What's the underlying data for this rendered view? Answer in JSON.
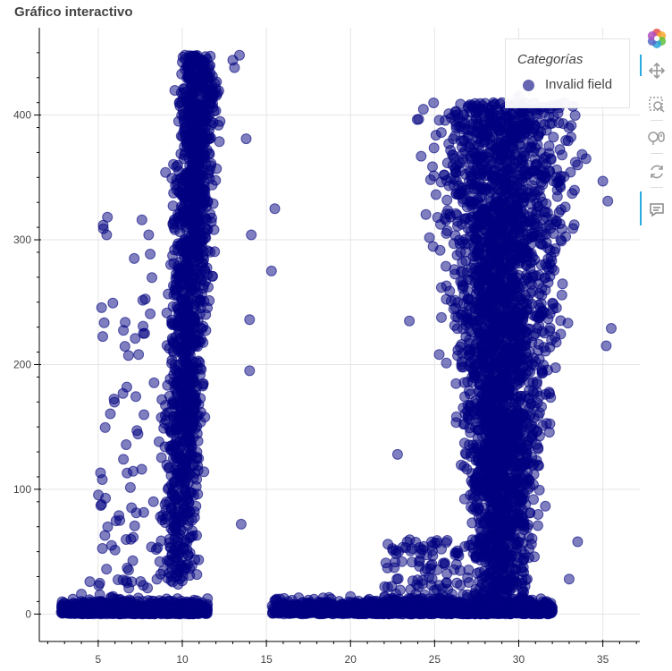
{
  "chart_data": {
    "type": "scatter",
    "title": "Gráfico interactivo",
    "xlabel": "",
    "ylabel": "",
    "xlim": [
      1.5,
      37.2
    ],
    "ylim": [
      -22,
      470
    ],
    "xticks": [
      5,
      10,
      15,
      20,
      25,
      30,
      35
    ],
    "yticks": [
      0,
      100,
      200,
      300,
      400
    ],
    "grid": true,
    "legend": {
      "title": "Categorías",
      "position": "top-right"
    },
    "series": [
      {
        "name": "Invalid field",
        "color": "#000080",
        "alpha": 0.5,
        "clusters": [
          {
            "x_range": [
              2.8,
              11.5
            ],
            "y_range": [
              0,
              18
            ],
            "approx_points": 900
          },
          {
            "x_range": [
              8.0,
              14.0
            ],
            "y_range": [
              20,
              448
            ],
            "approx_points": 1400
          },
          {
            "x_range": [
              5.0,
              8.5
            ],
            "y_range": [
              10,
              320
            ],
            "approx_points": 80
          },
          {
            "x_range": [
              15.3,
              32.0
            ],
            "y_range": [
              0,
              15
            ],
            "approx_points": 1500
          },
          {
            "x_range": [
              22.0,
              35.5
            ],
            "y_range": [
              0,
              410
            ],
            "approx_points": 3000
          }
        ],
        "sample_points": [
          [
            3.0,
            3
          ],
          [
            3.5,
            12
          ],
          [
            4.0,
            16
          ],
          [
            4.5,
            26
          ],
          [
            5.4,
            63
          ],
          [
            5.8,
            55
          ],
          [
            6.5,
            124
          ],
          [
            6.7,
            182
          ],
          [
            7.2,
            221
          ],
          [
            7.4,
            208
          ],
          [
            7.6,
            316
          ],
          [
            8.0,
            304
          ],
          [
            9.0,
            354
          ],
          [
            10.2,
            414
          ],
          [
            10.8,
            398
          ],
          [
            11.3,
            434
          ],
          [
            11.7,
            419
          ],
          [
            12.0,
            421
          ],
          [
            13.0,
            444
          ],
          [
            13.4,
            448
          ],
          [
            13.1,
            438
          ],
          [
            13.8,
            381
          ],
          [
            14.1,
            304
          ],
          [
            14.0,
            236
          ],
          [
            14.0,
            195
          ],
          [
            13.5,
            72
          ],
          [
            15.5,
            325
          ],
          [
            15.3,
            275
          ],
          [
            15.6,
            12
          ],
          [
            18,
            6
          ],
          [
            20,
            14
          ],
          [
            22.1,
            41
          ],
          [
            22.8,
            128
          ],
          [
            23.5,
            235
          ],
          [
            24.2,
            367
          ],
          [
            25.4,
            386
          ],
          [
            27.0,
            388
          ],
          [
            28.5,
            410
          ],
          [
            29.0,
            410
          ],
          [
            30.0,
            415
          ],
          [
            31.2,
            385
          ],
          [
            32.5,
            300
          ],
          [
            33.5,
            360
          ],
          [
            34.0,
            365
          ],
          [
            35.0,
            347
          ],
          [
            35.3,
            331
          ],
          [
            35.5,
            229
          ],
          [
            35.2,
            215
          ],
          [
            33.5,
            58
          ],
          [
            33.0,
            28
          ],
          [
            31.0,
            0
          ],
          [
            29.0,
            1
          ],
          [
            26.0,
            2
          ]
        ]
      }
    ]
  }
}
